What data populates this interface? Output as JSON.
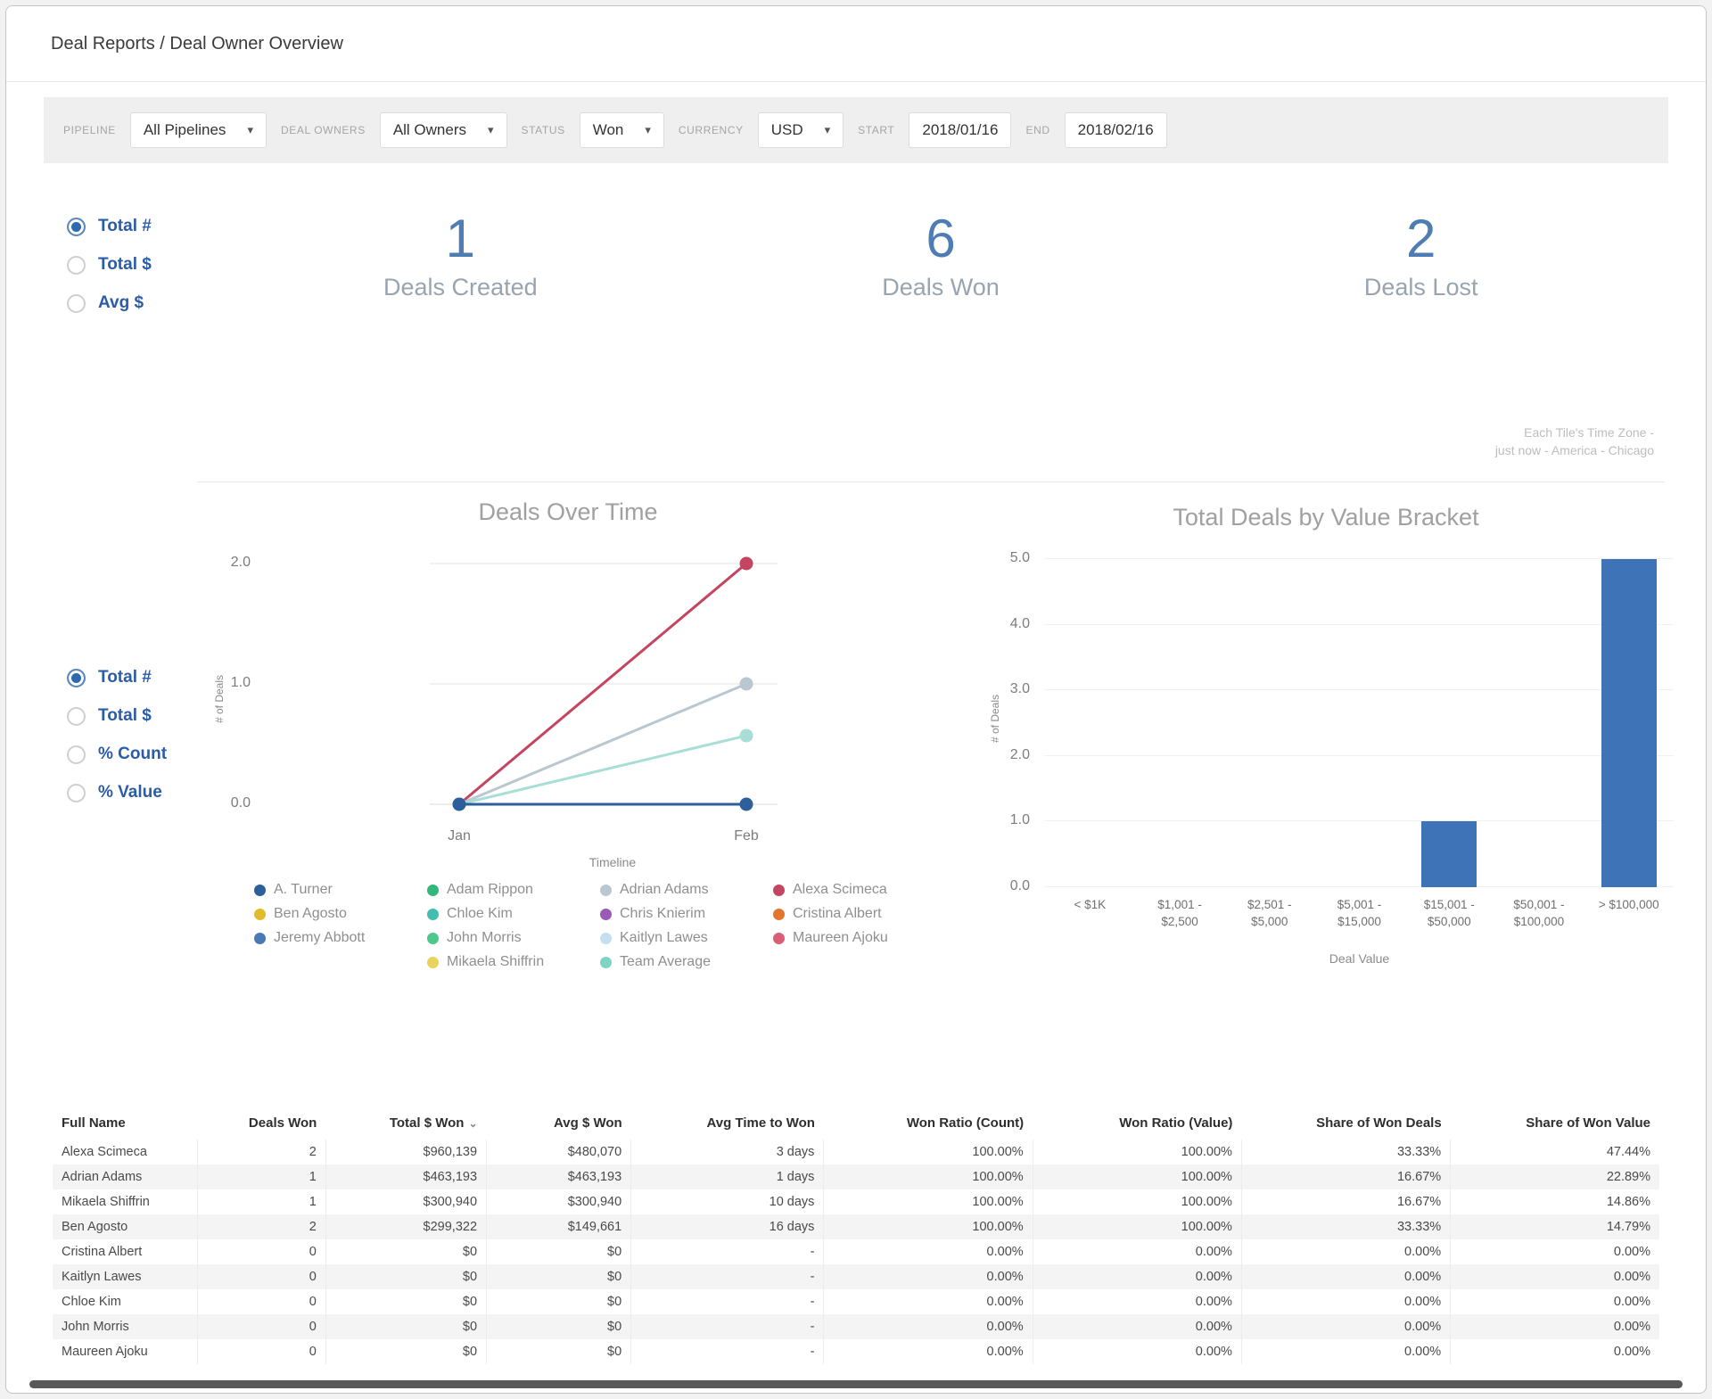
{
  "window": {
    "title": "Deal Reports / Deal Owner Overview"
  },
  "filter_bar": {
    "filters": [
      {
        "name": "pipeline",
        "label": "PIPELINE",
        "value": "All Pipelines",
        "type": "select"
      },
      {
        "name": "deal-owners",
        "label": "DEAL OWNERS",
        "value": "All Owners",
        "type": "select"
      },
      {
        "name": "status",
        "label": "STATUS",
        "value": "Won",
        "type": "select"
      },
      {
        "name": "currency",
        "label": "CURRENCY",
        "value": "USD",
        "type": "select"
      },
      {
        "name": "start-date",
        "label": "START",
        "value": "2018/01/16",
        "type": "date"
      },
      {
        "name": "end-date",
        "label": "END",
        "value": "2018/02/16",
        "type": "date"
      }
    ]
  },
  "kpi_section": {
    "metric_toggle": {
      "options": [
        "Total #",
        "Total $",
        "Avg $"
      ],
      "selected": 0
    },
    "kpis": [
      {
        "value": "1",
        "label": "Deals Created"
      },
      {
        "value": "6",
        "label": "Deals Won"
      },
      {
        "value": "2",
        "label": "Deals Lost"
      }
    ]
  },
  "timezone_note": {
    "line1": "Each Tile's Time Zone -",
    "line2": "just now - America - Chicago"
  },
  "charts_section": {
    "metric_toggle": {
      "options": [
        "Total #",
        "Total $",
        "% Count",
        "% Value"
      ],
      "selected": 0
    }
  },
  "chart_data": [
    {
      "type": "line",
      "title": "Deals Over Time",
      "xlabel": "Timeline",
      "ylabel": "# of Deals",
      "x": [
        "Jan",
        "Feb"
      ],
      "yticks": [
        0.0,
        1.0,
        2.0
      ],
      "ylim": [
        0,
        2
      ],
      "grid": true,
      "legend_position": "bottom",
      "series": [
        {
          "name": "Alexa Scimeca",
          "color": "#c4455f",
          "values": [
            0,
            2
          ]
        },
        {
          "name": "Adrian Adams",
          "color": "#b9c7d1",
          "values": [
            0,
            1
          ]
        },
        {
          "name": "Team Average",
          "color": "#a8ded5",
          "values": [
            0,
            0.57
          ]
        },
        {
          "name": "A. Turner",
          "color": "#2d5f9b",
          "values": [
            0,
            0
          ]
        }
      ],
      "legend": [
        {
          "label": "A. Turner",
          "color": "#2d5f9b"
        },
        {
          "label": "Adam Rippon",
          "color": "#33b679"
        },
        {
          "label": "Adrian Adams",
          "color": "#b9c7d1"
        },
        {
          "label": "Alexa Scimeca",
          "color": "#c4455f"
        },
        {
          "label": "Ben Agosto",
          "color": "#e3bb2a"
        },
        {
          "label": "Chloe Kim",
          "color": "#43bdb0"
        },
        {
          "label": "Chris Knierim",
          "color": "#9b59b6"
        },
        {
          "label": "Cristina Albert",
          "color": "#e2762d"
        },
        {
          "label": "Jeremy Abbott",
          "color": "#4a7ab5"
        },
        {
          "label": "John Morris",
          "color": "#4ec78c"
        },
        {
          "label": "Kaitlyn Lawes",
          "color": "#c5dff0"
        },
        {
          "label": "Maureen Ajoku",
          "color": "#d95f76"
        },
        {
          "label": "Mikaela Shiffrin",
          "color": "#e9d35b"
        },
        {
          "label": "Team Average",
          "color": "#7fd4c6"
        }
      ]
    },
    {
      "type": "bar",
      "title": "Total Deals by Value Bracket",
      "xlabel": "Deal Value",
      "ylabel": "# of Deals",
      "categories": [
        "< $1K",
        "$1,001 -\n$2,500",
        "$2,501 -\n$5,000",
        "$5,001 -\n$15,000",
        "$15,001 -\n$50,000",
        "$50,001 -\n$100,000",
        "> $100,000"
      ],
      "values": [
        0,
        0,
        0,
        0,
        1,
        0,
        5
      ],
      "yticks": [
        0.0,
        1.0,
        2.0,
        3.0,
        4.0,
        5.0
      ],
      "ylim": [
        0,
        5
      ],
      "grid": true,
      "bar_color": "#3e73b7"
    }
  ],
  "table": {
    "columns": [
      {
        "label": "Full Name",
        "align": "l",
        "width": "9%"
      },
      {
        "label": "Deals Won",
        "align": "r",
        "width": "8%"
      },
      {
        "label": "Total $ Won",
        "align": "r",
        "width": "10%",
        "sorted": "desc"
      },
      {
        "label": "Avg $ Won",
        "align": "r",
        "width": "9%"
      },
      {
        "label": "Avg Time to Won",
        "align": "r",
        "width": "12%"
      },
      {
        "label": "Won Ratio (Count)",
        "align": "r",
        "width": "13%"
      },
      {
        "label": "Won Ratio (Value)",
        "align": "r",
        "width": "13%"
      },
      {
        "label": "Share of Won Deals",
        "align": "r",
        "width": "13%"
      },
      {
        "label": "Share of Won Value",
        "align": "r",
        "width": "13%"
      }
    ],
    "rows": [
      [
        "Alexa Scimeca",
        "2",
        "$960,139",
        "$480,070",
        "3 days",
        "100.00%",
        "100.00%",
        "33.33%",
        "47.44%"
      ],
      [
        "Adrian Adams",
        "1",
        "$463,193",
        "$463,193",
        "1 days",
        "100.00%",
        "100.00%",
        "16.67%",
        "22.89%"
      ],
      [
        "Mikaela Shiffrin",
        "1",
        "$300,940",
        "$300,940",
        "10 days",
        "100.00%",
        "100.00%",
        "16.67%",
        "14.86%"
      ],
      [
        "Ben Agosto",
        "2",
        "$299,322",
        "$149,661",
        "16 days",
        "100.00%",
        "100.00%",
        "33.33%",
        "14.79%"
      ],
      [
        "Cristina Albert",
        "0",
        "$0",
        "$0",
        "-",
        "0.00%",
        "0.00%",
        "0.00%",
        "0.00%"
      ],
      [
        "Kaitlyn Lawes",
        "0",
        "$0",
        "$0",
        "-",
        "0.00%",
        "0.00%",
        "0.00%",
        "0.00%"
      ],
      [
        "Chloe Kim",
        "0",
        "$0",
        "$0",
        "-",
        "0.00%",
        "0.00%",
        "0.00%",
        "0.00%"
      ],
      [
        "John Morris",
        "0",
        "$0",
        "$0",
        "-",
        "0.00%",
        "0.00%",
        "0.00%",
        "0.00%"
      ],
      [
        "Maureen Ajoku",
        "0",
        "$0",
        "$0",
        "-",
        "0.00%",
        "0.00%",
        "0.00%",
        "0.00%"
      ]
    ]
  },
  "colors": {
    "accent_blue": "#3068ae",
    "kpi_number": "#4e7db3",
    "bar_fill": "#3e73b7",
    "filter_bar_bg": "#efefef"
  }
}
